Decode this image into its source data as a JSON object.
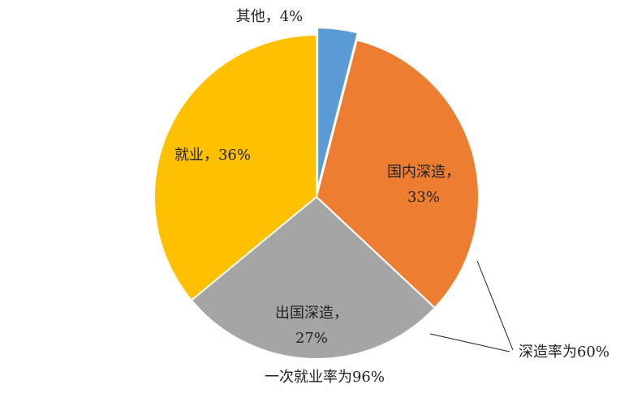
{
  "chart_data": {
    "type": "pie",
    "categories": [
      "其他",
      "国内深造",
      "出国深造",
      "就业"
    ],
    "values": [
      4,
      33,
      27,
      36
    ],
    "value_labels": [
      "4%",
      "33%",
      "27%",
      "36%"
    ],
    "label_separator": "，",
    "colors": [
      "#5b9bd5",
      "#ed7d31",
      "#a5a5a5",
      "#ffc000"
    ],
    "exploded": [
      0
    ],
    "annotations": [
      "深造率为60%",
      "一次就业率为96%"
    ]
  }
}
